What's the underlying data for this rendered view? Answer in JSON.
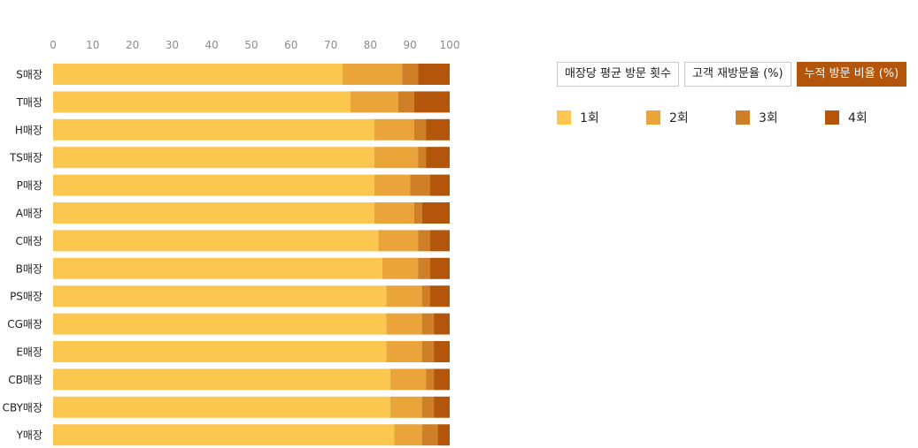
{
  "tabs": [
    {
      "label": "매장당 평균 방문 횟수",
      "active": false
    },
    {
      "label": "고객 재방문율 (%)",
      "active": false
    },
    {
      "label": "누적 방문 비율 (%)",
      "active": true
    }
  ],
  "colors": {
    "series": [
      "#fbc74f",
      "#eba43a",
      "#cf8027",
      "#b3560c"
    ],
    "tick_text": "#8c8c8c",
    "category_text": "#222222",
    "separator": "#ffffff"
  },
  "chart_data": {
    "type": "bar",
    "orientation": "horizontal",
    "stacked": true,
    "xlim": [
      0,
      100
    ],
    "xticks": [
      0,
      10,
      20,
      30,
      40,
      50,
      60,
      70,
      80,
      90,
      100
    ],
    "grid": false,
    "legend_position": "right",
    "categories": [
      "S매장",
      "T매장",
      "H매장",
      "TS매장",
      "P매장",
      "A매장",
      "C매장",
      "B매장",
      "PS매장",
      "CG매장",
      "E매장",
      "CB매장",
      "CBY매장",
      "Y매장"
    ],
    "series": [
      {
        "name": "1회",
        "values": [
          73,
          75,
          81,
          81,
          81,
          81,
          82,
          83,
          84,
          84,
          84,
          85,
          85,
          86
        ]
      },
      {
        "name": "2회",
        "values": [
          15,
          12,
          10,
          11,
          9,
          10,
          10,
          9,
          9,
          9,
          9,
          9,
          8,
          7
        ]
      },
      {
        "name": "3회",
        "values": [
          4,
          4,
          3,
          2,
          5,
          2,
          3,
          3,
          2,
          3,
          3,
          2,
          3,
          4
        ]
      },
      {
        "name": "4회",
        "values": [
          8,
          9,
          6,
          6,
          5,
          7,
          5,
          5,
          5,
          4,
          4,
          4,
          4,
          3
        ]
      }
    ]
  }
}
